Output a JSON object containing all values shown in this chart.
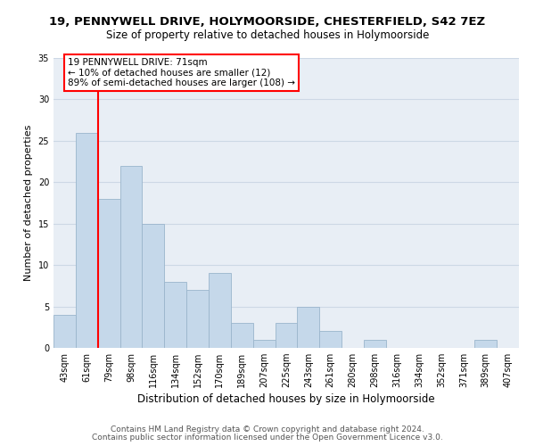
{
  "title": "19, PENNYWELL DRIVE, HOLYMOORSIDE, CHESTERFIELD, S42 7EZ",
  "subtitle": "Size of property relative to detached houses in Holymoorside",
  "xlabel": "Distribution of detached houses by size in Holymoorside",
  "ylabel": "Number of detached properties",
  "categories": [
    "43sqm",
    "61sqm",
    "79sqm",
    "98sqm",
    "116sqm",
    "134sqm",
    "152sqm",
    "170sqm",
    "189sqm",
    "207sqm",
    "225sqm",
    "243sqm",
    "261sqm",
    "280sqm",
    "298sqm",
    "316sqm",
    "334sqm",
    "352sqm",
    "371sqm",
    "389sqm",
    "407sqm"
  ],
  "values": [
    4,
    26,
    18,
    22,
    15,
    8,
    7,
    9,
    3,
    1,
    3,
    5,
    2,
    0,
    1,
    0,
    0,
    0,
    0,
    1,
    0
  ],
  "bar_color": "#c5d8ea",
  "bar_edgecolor": "#9ab5cc",
  "bg_color": "#e8eef5",
  "grid_color": "#cdd8e5",
  "annotation_text": "19 PENNYWELL DRIVE: 71sqm\n← 10% of detached houses are smaller (12)\n89% of semi-detached houses are larger (108) →",
  "redline_x": 1.5,
  "ylim": [
    0,
    35
  ],
  "yticks": [
    0,
    5,
    10,
    15,
    20,
    25,
    30,
    35
  ],
  "footer_line1": "Contains HM Land Registry data © Crown copyright and database right 2024.",
  "footer_line2": "Contains public sector information licensed under the Open Government Licence v3.0.",
  "title_fontsize": 9.5,
  "subtitle_fontsize": 8.5,
  "xlabel_fontsize": 8.5,
  "ylabel_fontsize": 8,
  "tick_fontsize": 7,
  "annotation_fontsize": 7.5,
  "footer_fontsize": 6.5
}
